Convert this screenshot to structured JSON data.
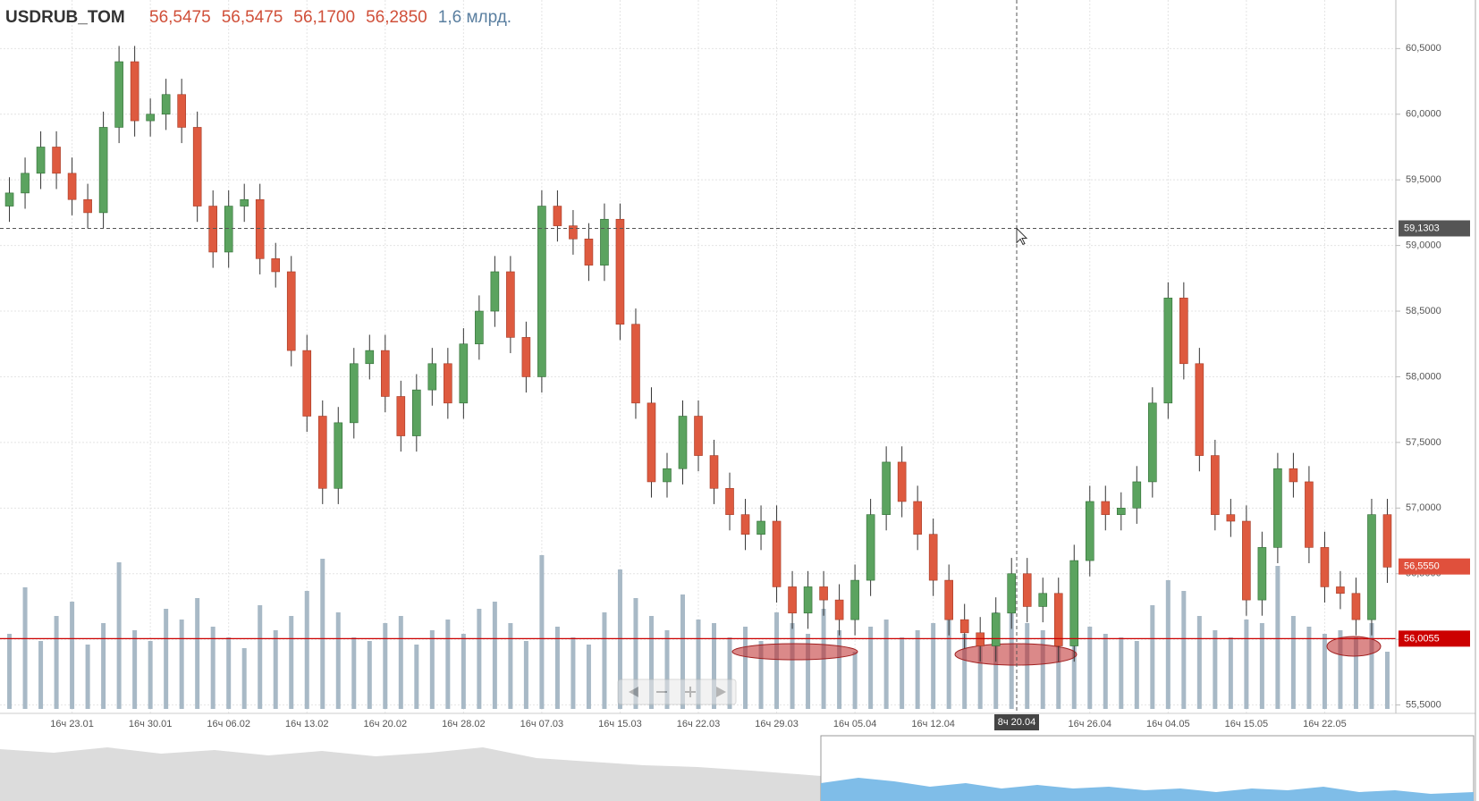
{
  "chart_data": {
    "type": "candlestick",
    "title": "USDRUB_TOM",
    "quote": [
      {
        "value": 56.5475,
        "label": "56,5475"
      },
      {
        "value": 56.5475,
        "label": "56,5475"
      },
      {
        "value": 56.17,
        "label": "56,1700"
      },
      {
        "value": 56.285,
        "label": "56,2850"
      }
    ],
    "volume_label": {
      "value": 1.6,
      "label": "1,6 млрд."
    },
    "categories": [
      null,
      null,
      null,
      null,
      "16ч 23.01",
      null,
      null,
      null,
      null,
      "16ч 30.01",
      null,
      null,
      null,
      null,
      "16ч 06.02",
      null,
      null,
      null,
      null,
      "16ч 13.02",
      null,
      null,
      null,
      null,
      "16ч 20.02",
      null,
      null,
      null,
      null,
      "16ч 28.02",
      null,
      null,
      null,
      null,
      "16ч 07.03",
      null,
      null,
      null,
      null,
      "16ч 15.03",
      null,
      null,
      null,
      null,
      "16ч 22.03",
      null,
      null,
      null,
      null,
      "16ч 29.03",
      null,
      null,
      null,
      null,
      "16ч 05.04",
      null,
      null,
      null,
      null,
      "16ч 12.04",
      null,
      null,
      null,
      null,
      null,
      null,
      null,
      null,
      null,
      "16ч 26.04",
      null,
      null,
      null,
      null,
      "16ч 04.05",
      null,
      null,
      null,
      null,
      "16ч 15.05",
      null,
      null,
      null,
      null,
      "16ч 22.05",
      null,
      null,
      null,
      null
    ],
    "open": [
      59.3,
      59.4,
      59.55,
      59.75,
      59.55,
      59.35,
      59.25,
      59.9,
      60.4,
      59.95,
      60.0,
      60.15,
      59.9,
      59.3,
      58.95,
      59.3,
      59.35,
      58.9,
      58.8,
      58.2,
      57.7,
      57.15,
      57.65,
      58.1,
      58.2,
      57.85,
      57.55,
      57.9,
      58.1,
      57.8,
      58.25,
      58.5,
      58.8,
      58.3,
      58.0,
      59.3,
      59.15,
      59.05,
      58.85,
      59.2,
      58.4,
      57.8,
      57.2,
      57.3,
      57.7,
      57.4,
      57.15,
      56.95,
      56.8,
      56.9,
      56.4,
      56.2,
      56.4,
      56.3,
      56.15,
      56.45,
      56.95,
      57.35,
      57.05,
      56.8,
      56.45,
      56.15,
      56.05,
      55.95,
      56.2,
      56.5,
      56.25,
      56.35,
      55.95,
      56.6,
      57.05,
      56.95,
      57.0,
      57.2,
      57.8,
      58.6,
      58.1,
      57.4,
      56.95,
      56.9,
      56.3,
      56.7,
      57.3,
      57.2,
      56.7,
      56.4,
      56.35,
      56.15,
      56.95
    ],
    "high": [
      59.52,
      59.67,
      59.87,
      59.87,
      59.67,
      59.47,
      60.02,
      60.52,
      60.52,
      60.12,
      60.27,
      60.27,
      60.02,
      59.42,
      59.42,
      59.47,
      59.47,
      59.02,
      58.92,
      58.32,
      57.82,
      57.77,
      58.22,
      58.32,
      58.32,
      57.97,
      58.02,
      58.22,
      58.22,
      58.37,
      58.62,
      58.92,
      58.92,
      58.42,
      59.42,
      59.42,
      59.27,
      59.17,
      59.32,
      59.32,
      58.52,
      57.92,
      57.42,
      57.82,
      57.82,
      57.52,
      57.27,
      57.07,
      57.02,
      57.02,
      56.52,
      56.52,
      56.52,
      56.42,
      56.57,
      57.07,
      57.47,
      57.47,
      57.17,
      56.92,
      56.57,
      56.27,
      56.17,
      56.32,
      56.62,
      56.62,
      56.47,
      56.47,
      56.72,
      57.17,
      57.17,
      57.12,
      57.32,
      57.92,
      58.72,
      58.72,
      58.22,
      57.52,
      57.07,
      57.02,
      56.82,
      57.42,
      57.42,
      57.32,
      56.82,
      56.52,
      56.47,
      57.07,
      57.07
    ],
    "low": [
      59.18,
      59.28,
      59.43,
      59.43,
      59.23,
      59.13,
      59.13,
      59.78,
      59.83,
      59.83,
      59.88,
      59.78,
      59.18,
      58.83,
      58.83,
      59.18,
      58.78,
      58.68,
      58.08,
      57.58,
      57.03,
      57.03,
      57.53,
      57.98,
      57.73,
      57.43,
      57.43,
      57.78,
      57.68,
      57.68,
      58.13,
      58.38,
      58.18,
      57.88,
      57.88,
      59.03,
      58.93,
      58.73,
      58.73,
      58.28,
      57.68,
      57.08,
      57.08,
      57.18,
      57.28,
      57.03,
      56.83,
      56.68,
      56.68,
      56.28,
      56.08,
      56.08,
      56.18,
      56.03,
      56.03,
      56.33,
      56.83,
      56.93,
      56.68,
      56.33,
      56.03,
      55.93,
      55.83,
      55.83,
      56.08,
      56.13,
      56.13,
      55.83,
      55.83,
      56.48,
      56.83,
      56.83,
      56.88,
      57.08,
      57.68,
      57.98,
      57.28,
      56.83,
      56.78,
      56.18,
      56.18,
      56.58,
      57.08,
      56.58,
      56.28,
      56.23,
      56.03,
      56.03,
      56.43
    ],
    "close": [
      59.4,
      59.55,
      59.75,
      59.55,
      59.35,
      59.25,
      59.9,
      60.4,
      59.95,
      60.0,
      60.15,
      59.9,
      59.3,
      58.95,
      59.3,
      59.35,
      58.9,
      58.8,
      58.2,
      57.7,
      57.15,
      57.65,
      58.1,
      58.2,
      57.85,
      57.55,
      57.9,
      58.1,
      57.8,
      58.25,
      58.5,
      58.8,
      58.3,
      58.0,
      59.3,
      59.15,
      59.05,
      58.85,
      59.2,
      58.4,
      57.8,
      57.2,
      57.3,
      57.7,
      57.4,
      57.15,
      56.95,
      56.8,
      56.9,
      56.4,
      56.2,
      56.4,
      56.3,
      56.15,
      56.45,
      56.95,
      57.35,
      57.05,
      56.8,
      56.45,
      56.15,
      56.05,
      55.95,
      56.2,
      56.5,
      56.25,
      56.35,
      55.95,
      56.6,
      57.05,
      56.95,
      57.0,
      57.2,
      57.8,
      58.6,
      58.1,
      57.4,
      56.95,
      56.9,
      56.3,
      56.7,
      57.3,
      57.2,
      56.7,
      56.4,
      56.35,
      56.15,
      56.95,
      56.55
    ],
    "volume": [
      2.1,
      3.4,
      1.9,
      2.6,
      3.0,
      1.8,
      2.4,
      4.1,
      2.2,
      1.9,
      2.8,
      2.5,
      3.1,
      2.3,
      2.0,
      1.7,
      2.9,
      2.2,
      2.6,
      3.3,
      4.2,
      2.7,
      2.0,
      1.9,
      2.4,
      2.6,
      1.8,
      2.2,
      2.5,
      2.1,
      2.8,
      3.0,
      2.4,
      1.9,
      4.3,
      2.3,
      2.0,
      1.8,
      2.7,
      3.9,
      3.1,
      2.6,
      2.2,
      3.2,
      2.5,
      2.4,
      2.0,
      2.3,
      1.9,
      2.7,
      2.4,
      2.1,
      2.8,
      2.2,
      1.6,
      2.3,
      2.5,
      2.0,
      2.2,
      2.4,
      2.6,
      2.1,
      2.0,
      2.7,
      3.0,
      2.4,
      2.2,
      2.5,
      2.8,
      2.3,
      2.1,
      2.0,
      1.9,
      2.9,
      3.6,
      3.3,
      2.6,
      2.2,
      2.0,
      2.5,
      2.4,
      4.0,
      2.6,
      2.3,
      2.1,
      2.2,
      2.0,
      2.4,
      1.6
    ],
    "volume_ylim": [
      0,
      5
    ],
    "up_color": "#5ba35f",
    "down_color": "#de5a3f",
    "volume_color": "#a8b9c6",
    "ylim": [
      55.47,
      60.87
    ],
    "yticks": [
      {
        "value": 55.5,
        "label": "55,5000"
      },
      {
        "value": 56,
        "label": "56,0000"
      },
      {
        "value": 56.5,
        "label": "56,5000"
      },
      {
        "value": 57,
        "label": "57,0000"
      },
      {
        "value": 57.5,
        "label": "57,5000"
      },
      {
        "value": 58,
        "label": "58,0000"
      },
      {
        "value": 58.5,
        "label": "58,5000"
      },
      {
        "value": 59,
        "label": "59,0000"
      },
      {
        "value": 59.5,
        "label": "59,5000"
      },
      {
        "value": 60,
        "label": "60,0000"
      },
      {
        "value": 60.5,
        "label": "60,5000"
      }
    ],
    "grid": true,
    "crosshair": {
      "value": 59.1303,
      "label": "59,1303",
      "x_label": "8ч 20.04"
    },
    "markers": [
      {
        "value": 56.555,
        "label": "56,5550",
        "color": "#e0503c"
      },
      {
        "value": 56.0055,
        "label": "56,0055",
        "color": "#cc0000"
      }
    ]
  }
}
